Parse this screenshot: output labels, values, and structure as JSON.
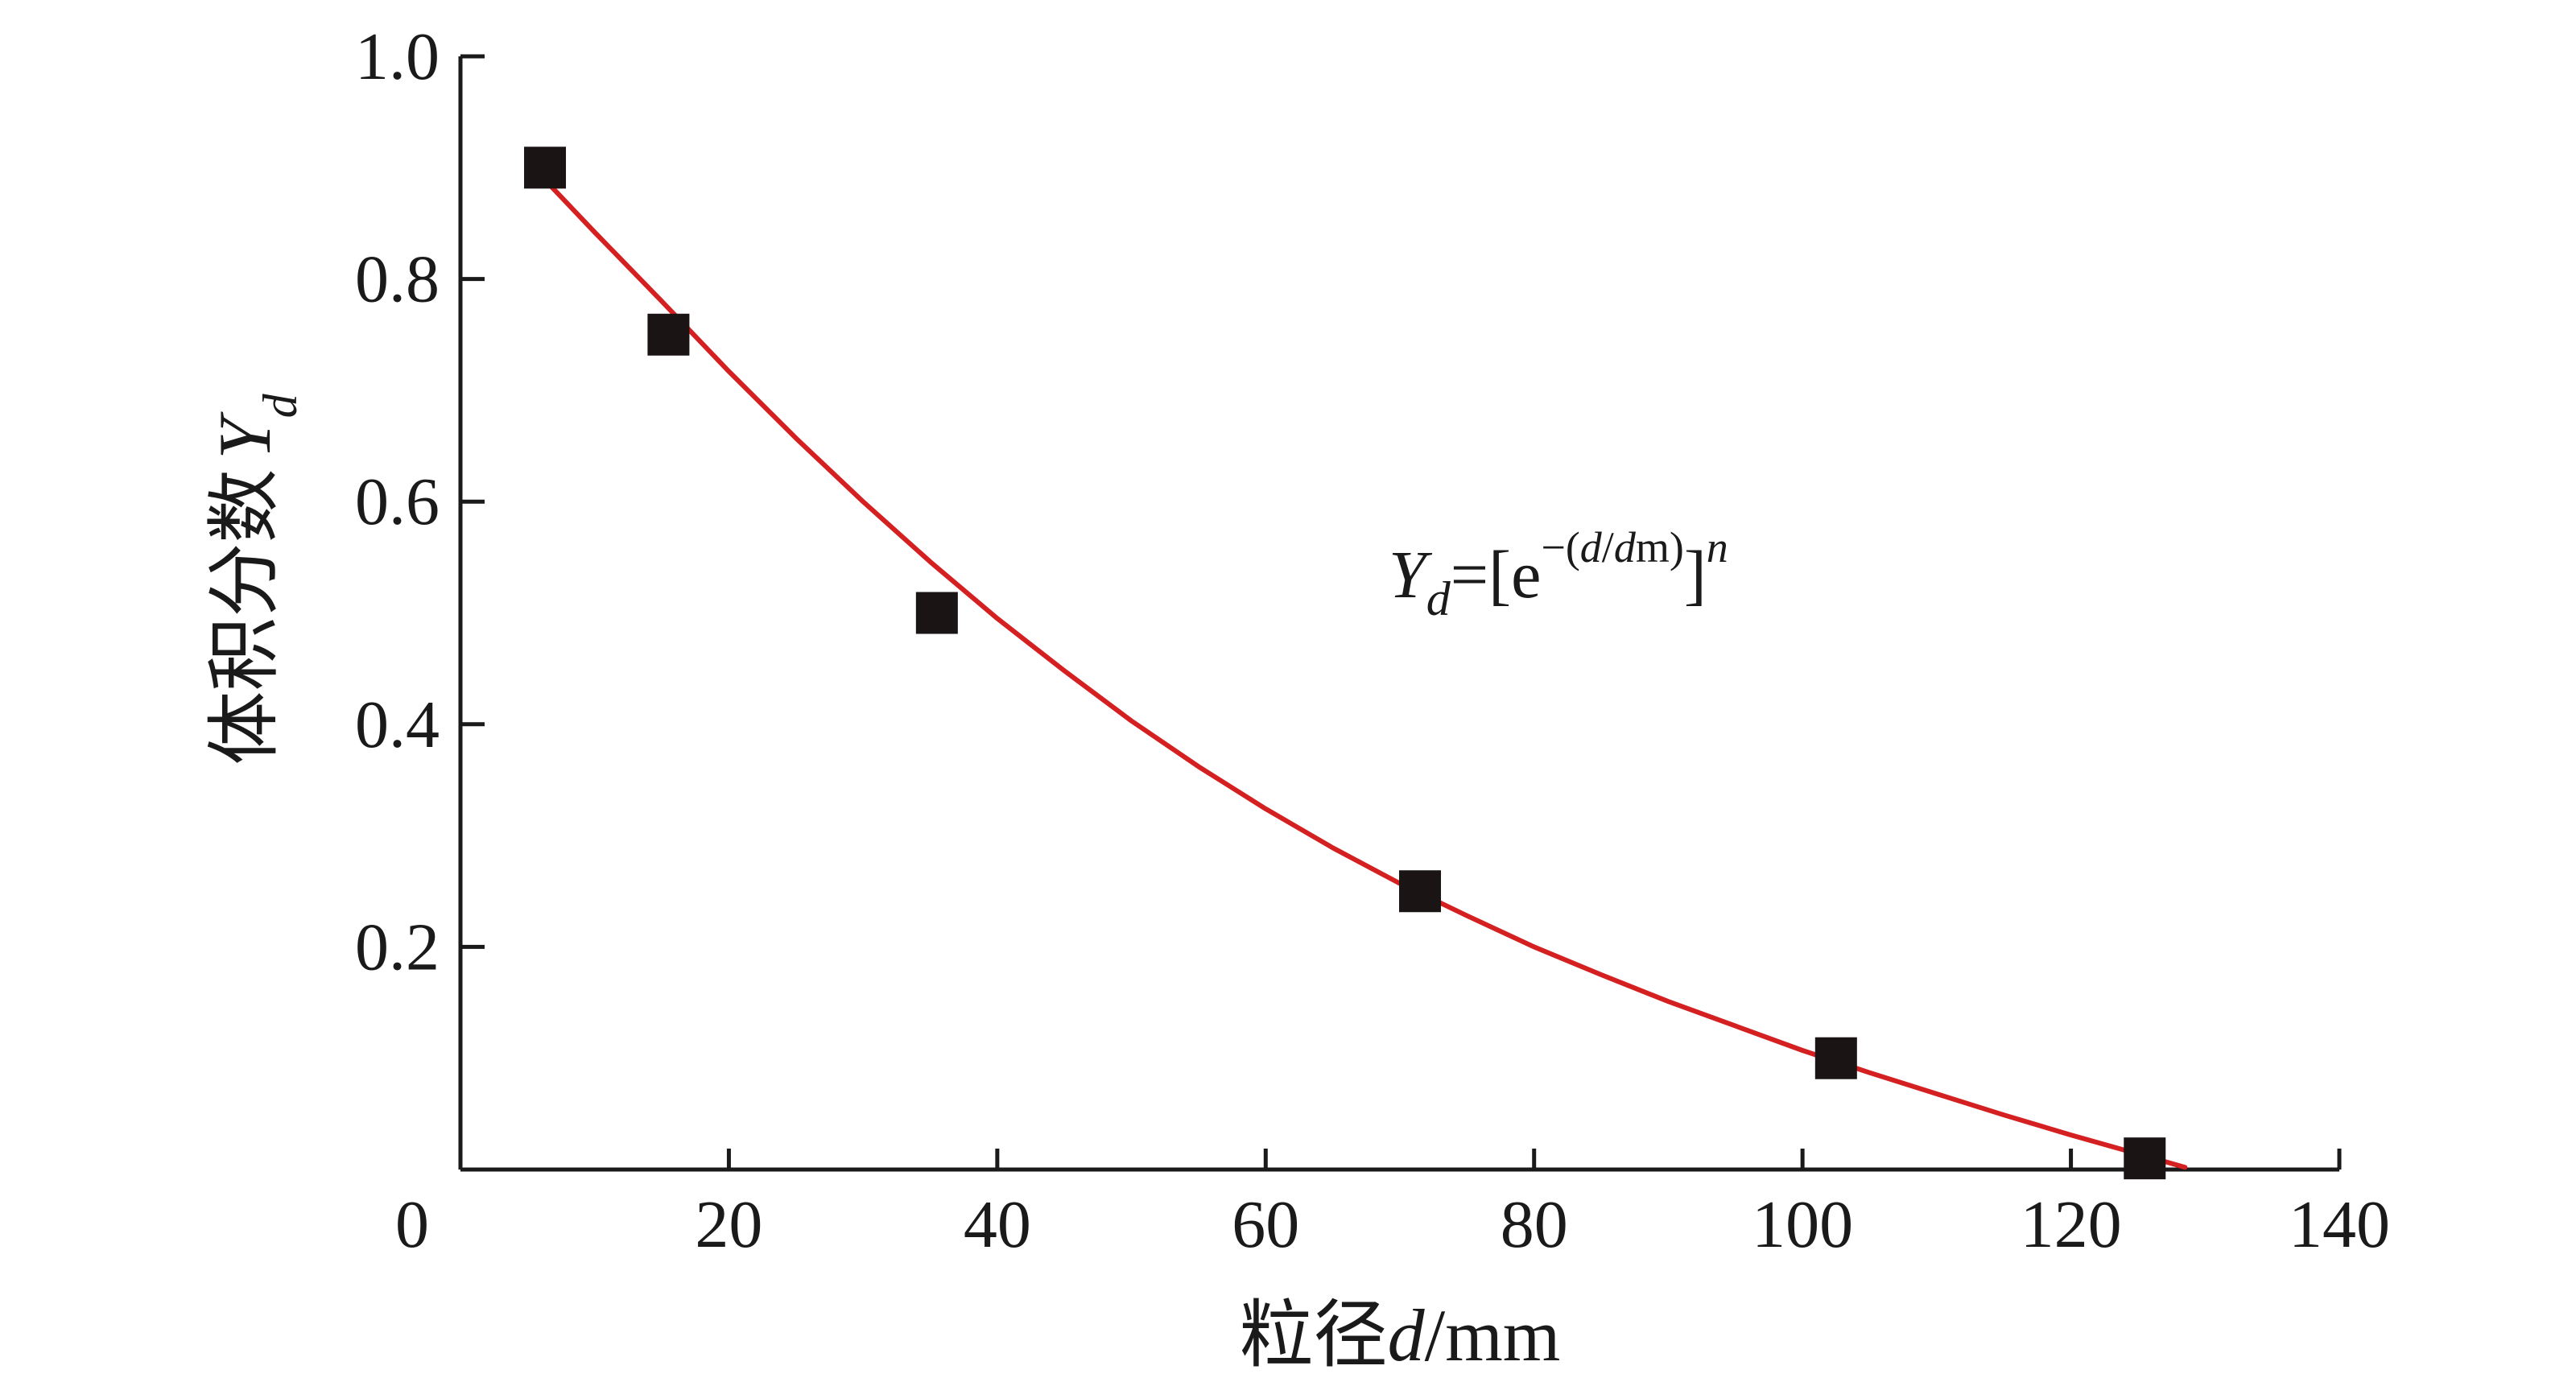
{
  "chart_data": {
    "type": "scatter",
    "title": "",
    "xlabel": {
      "prefix": "粒径",
      "var": "d",
      "suffix": "/mm"
    },
    "ylabel": {
      "prefix": "体积分数",
      "var": "Y",
      "sub": "d"
    },
    "xlim": [
      0,
      140
    ],
    "ylim": [
      0,
      1.0
    ],
    "x_ticks": [
      {
        "value": 0,
        "label": "0"
      },
      {
        "value": 20,
        "label": "20"
      },
      {
        "value": 40,
        "label": "40"
      },
      {
        "value": 60,
        "label": "60"
      },
      {
        "value": 80,
        "label": "80"
      },
      {
        "value": 100,
        "label": "100"
      },
      {
        "value": 120,
        "label": "120"
      },
      {
        "value": 140,
        "label": "140"
      }
    ],
    "y_ticks": [
      {
        "value": 0.2,
        "label": "0.2"
      },
      {
        "value": 0.4,
        "label": "0.4"
      },
      {
        "value": 0.6,
        "label": "0.6"
      },
      {
        "value": 0.8,
        "label": "0.8"
      },
      {
        "value": 1.0,
        "label": "1.0"
      }
    ],
    "series": [
      {
        "type": "scatter",
        "marker": "square",
        "color": "#1a1414",
        "points": [
          {
            "x": 6.3,
            "y": 0.9
          },
          {
            "x": 15.5,
            "y": 0.75
          },
          {
            "x": 35.5,
            "y": 0.5
          },
          {
            "x": 71.5,
            "y": 0.25
          },
          {
            "x": 102.5,
            "y": 0.1
          },
          {
            "x": 125.5,
            "y": 0.01
          }
        ]
      },
      {
        "type": "line",
        "color": "#d42020",
        "points": [
          {
            "x": 6.3,
            "y": 0.889
          },
          {
            "x": 10,
            "y": 0.842
          },
          {
            "x": 15,
            "y": 0.78
          },
          {
            "x": 20,
            "y": 0.717
          },
          {
            "x": 25,
            "y": 0.657
          },
          {
            "x": 30,
            "y": 0.6
          },
          {
            "x": 35,
            "y": 0.546
          },
          {
            "x": 40,
            "y": 0.495
          },
          {
            "x": 45,
            "y": 0.448
          },
          {
            "x": 50,
            "y": 0.403
          },
          {
            "x": 55,
            "y": 0.362
          },
          {
            "x": 60,
            "y": 0.324
          },
          {
            "x": 65,
            "y": 0.289
          },
          {
            "x": 70,
            "y": 0.257
          },
          {
            "x": 75,
            "y": 0.228
          },
          {
            "x": 80,
            "y": 0.2
          },
          {
            "x": 85,
            "y": 0.175
          },
          {
            "x": 90,
            "y": 0.151
          },
          {
            "x": 95,
            "y": 0.129
          },
          {
            "x": 100,
            "y": 0.107
          },
          {
            "x": 105,
            "y": 0.087
          },
          {
            "x": 110,
            "y": 0.068
          },
          {
            "x": 115,
            "y": 0.049
          },
          {
            "x": 120,
            "y": 0.031
          },
          {
            "x": 125,
            "y": 0.014
          },
          {
            "x": 128.5,
            "y": 0.002
          }
        ]
      }
    ],
    "annotation": {
      "Y": "Y",
      "sub": "d",
      "eq_bracket": "=[e",
      "exp_minus": "−(",
      "exp_d": "d",
      "exp_slash": "/",
      "exp_dm": "d",
      "exp_dm_sub": "m",
      "exp_close": ")",
      "close_bracket": "]",
      "power": "n"
    },
    "grid": false,
    "legend": "none"
  }
}
